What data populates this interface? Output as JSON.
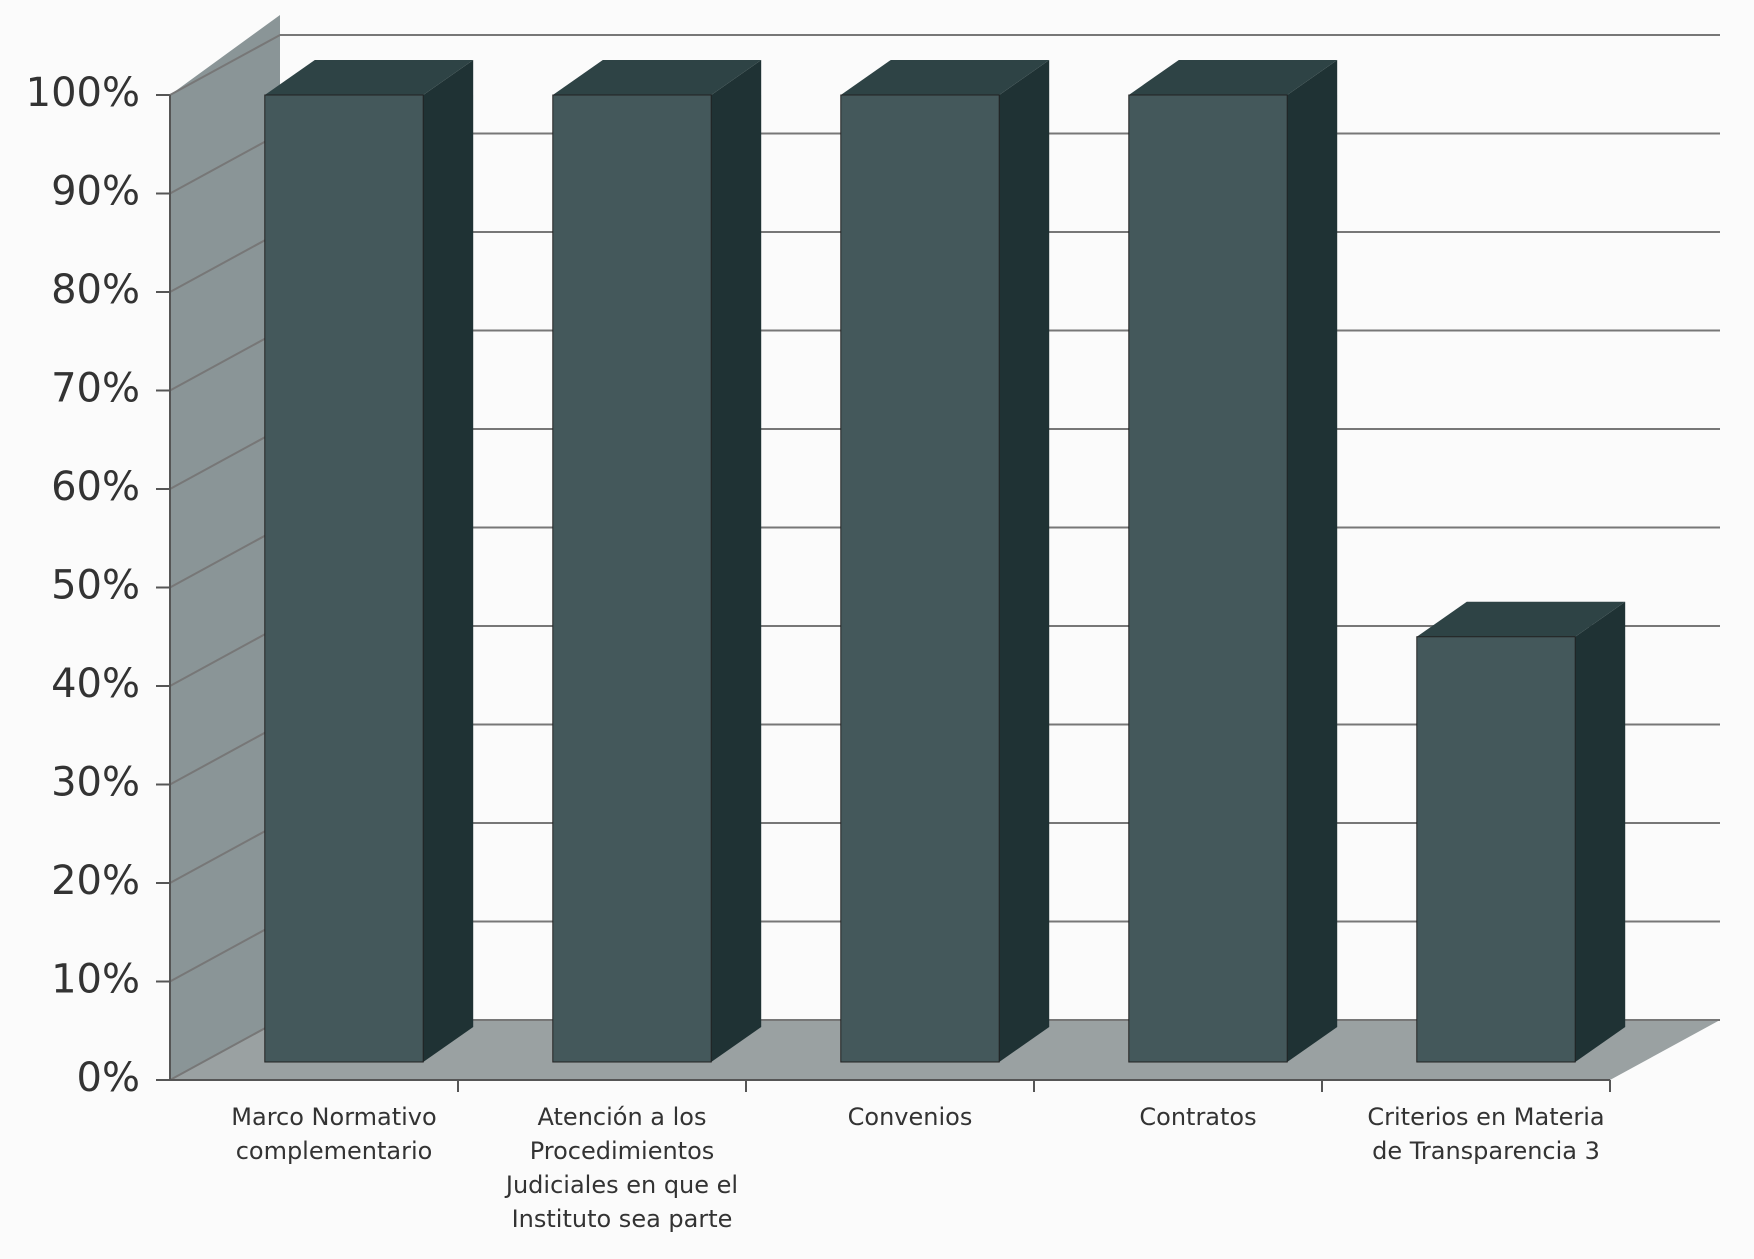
{
  "chart_data": {
    "type": "bar3d",
    "categories": [
      "Marco Normativo complementario",
      "Atención a los Procedimientos Judiciales en que el Instituto sea parte",
      "Convenios",
      "Contratos",
      "Criterios en Materia de Transparencia 3"
    ],
    "values": [
      100,
      100,
      100,
      100,
      45
    ],
    "color": "#44585b",
    "ylim": [
      0,
      100
    ],
    "yticks": [
      {
        "value": 0,
        "label": "0%"
      },
      {
        "value": 10,
        "label": "10%"
      },
      {
        "value": 20,
        "label": "20%"
      },
      {
        "value": 30,
        "label": "30%"
      },
      {
        "value": 40,
        "label": "40%"
      },
      {
        "value": 50,
        "label": "50%"
      },
      {
        "value": 60,
        "label": "60%"
      },
      {
        "value": 70,
        "label": "70%"
      },
      {
        "value": 80,
        "label": "80%"
      },
      {
        "value": 90,
        "label": "90%"
      },
      {
        "value": 100,
        "label": "100%"
      }
    ],
    "grid": true
  }
}
